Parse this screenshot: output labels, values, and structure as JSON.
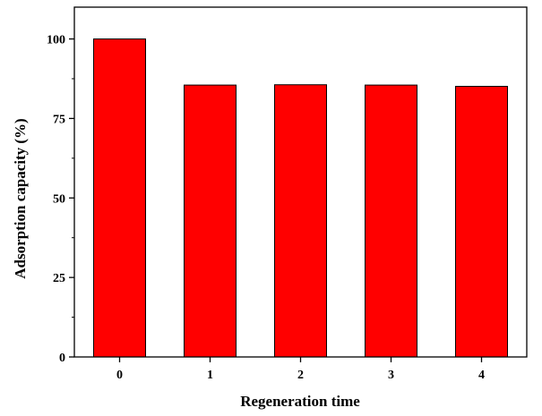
{
  "chart_data": {
    "type": "bar",
    "title": "",
    "xlabel": "Regeneration time",
    "ylabel": "Adsorption capacity (%)",
    "categories": [
      "0",
      "1",
      "2",
      "3",
      "4"
    ],
    "values": [
      100,
      85.5,
      85.6,
      85.5,
      85.1
    ],
    "ylim": [
      0,
      110
    ],
    "yticks": [
      0,
      25,
      50,
      75,
      100
    ],
    "grid": false,
    "legend": "none",
    "bar_color": "#ff0000",
    "bar_edge_color": "#000000"
  }
}
